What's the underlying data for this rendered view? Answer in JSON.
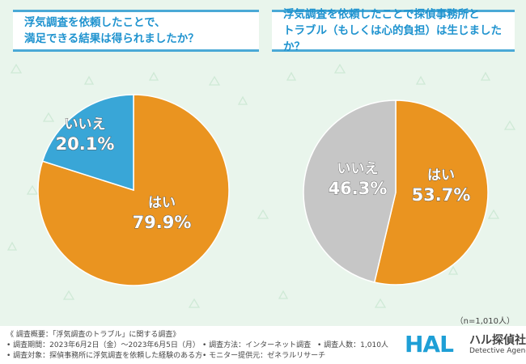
{
  "titles": {
    "left": [
      "浮気調査を依頼したことで、",
      "満足できる結果は得られましたか？"
    ],
    "right": [
      "浮気調査を依頼したことで探偵事務所と",
      "トラブル（もしくは心的負担）は生じましたか？"
    ]
  },
  "chart_data": [
    {
      "type": "pie",
      "title": "浮気調査を依頼したことで、満足できる結果は得られましたか？",
      "slices": [
        {
          "label": "はい",
          "value": 79.9,
          "display": "79.9%",
          "color": "#ea9420"
        },
        {
          "label": "いいえ",
          "value": 20.1,
          "display": "20.1%",
          "color": "#39a6d7"
        }
      ]
    },
    {
      "type": "pie",
      "title": "浮気調査を依頼したことで探偵事務所とトラブル（もしくは心的負担）は生じましたか？",
      "slices": [
        {
          "label": "はい",
          "value": 53.7,
          "display": "53.7%",
          "color": "#ea9420"
        },
        {
          "label": "いいえ",
          "value": 46.3,
          "display": "46.3%",
          "color": "#c6c6c6"
        }
      ]
    }
  ],
  "sample_size": "（n=1,010人）",
  "footer": {
    "overview": "《 調査概要：「浮気調査のトラブル」に関する調査》",
    "period": "• 調査期間：2023年6月2日（金）〜2023年6月5日（月）",
    "target": "• 調査対象：探偵事務所に浮気調査を依頼した経験のある方",
    "method": "• 調査方法：インターネット調査",
    "monitor": "• モニター提供元：ゼネラルリサーチ",
    "count": "• 調査人数：1,010人"
  },
  "logo": {
    "mark": "HAL",
    "name": "ハル探偵社",
    "tagline": "Detective Agency"
  }
}
